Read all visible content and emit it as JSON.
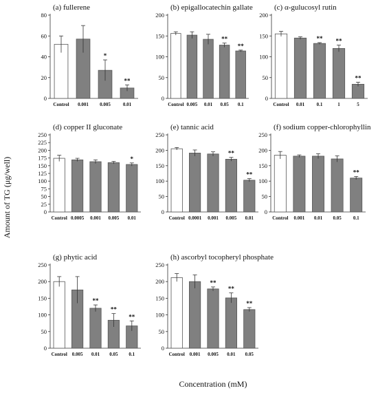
{
  "figure": {
    "ylabel": "Amount of TG (μg/well)",
    "xlabel": "Concentration (mM)"
  },
  "chart_data": [
    {
      "type": "bar",
      "title": "(a) fullerene",
      "categories": [
        "Control",
        "0.001",
        "0.005",
        "0.01"
      ],
      "values": [
        52,
        57,
        27,
        10
      ],
      "errors": [
        8,
        13,
        10,
        3
      ],
      "significance": [
        "",
        "",
        "*",
        "**"
      ],
      "ylim": [
        0,
        80
      ],
      "yticks": [
        0,
        20,
        40,
        60,
        80
      ]
    },
    {
      "type": "bar",
      "title": "(b) epigallocatechin gallate",
      "categories": [
        "Control",
        "0.005",
        "0.01",
        "0.05",
        "0.1"
      ],
      "values": [
        156,
        152,
        142,
        128,
        114
      ],
      "errors": [
        4,
        8,
        12,
        5,
        2
      ],
      "significance": [
        "",
        "",
        "",
        "**",
        "**"
      ],
      "ylim": [
        0,
        200
      ],
      "yticks": [
        0,
        50,
        100,
        150,
        200
      ]
    },
    {
      "type": "bar",
      "title": "(c) α-gulucosyl rutin",
      "categories": [
        "Control",
        "0.01",
        "0.1",
        "1",
        "5"
      ],
      "values": [
        155,
        145,
        132,
        120,
        34
      ],
      "errors": [
        6,
        3,
        2,
        8,
        5
      ],
      "significance": [
        "",
        "",
        "**",
        "**",
        "**"
      ],
      "ylim": [
        0,
        200
      ],
      "yticks": [
        0,
        50,
        100,
        150,
        200
      ]
    },
    {
      "type": "bar",
      "title": "(d) copper II gluconate",
      "categories": [
        "Control",
        "0.0005",
        "0.001",
        "0.005",
        "0.01"
      ],
      "values": [
        174,
        169,
        163,
        160,
        154
      ],
      "errors": [
        10,
        5,
        6,
        4,
        5
      ],
      "significance": [
        "",
        "",
        "",
        "",
        "*"
      ],
      "ylim": [
        0,
        250
      ],
      "yticks": [
        0,
        25,
        50,
        75,
        100,
        125,
        150,
        175,
        200,
        225,
        250
      ]
    },
    {
      "type": "bar",
      "title": "(e) tannic acid",
      "categories": [
        "Control",
        "0.0001",
        "0.001",
        "0.005",
        "0.01"
      ],
      "values": [
        205,
        191,
        188,
        171,
        103
      ],
      "errors": [
        4,
        10,
        7,
        6,
        5
      ],
      "significance": [
        "",
        "",
        "",
        "**",
        "**"
      ],
      "ylim": [
        0,
        250
      ],
      "yticks": [
        0,
        50,
        100,
        150,
        200,
        250
      ]
    },
    {
      "type": "bar",
      "title": "(f) sodium copper-chlorophyllin",
      "categories": [
        "Control",
        "0.001",
        "0.01",
        "0.05",
        "0.1"
      ],
      "values": [
        184,
        181,
        181,
        172,
        110
      ],
      "errors": [
        12,
        4,
        8,
        10,
        5
      ],
      "significance": [
        "",
        "",
        "",
        "",
        "**"
      ],
      "ylim": [
        0,
        250
      ],
      "yticks": [
        0,
        50,
        100,
        150,
        200,
        250
      ]
    },
    {
      "type": "bar",
      "title": "(g) phytic acid",
      "categories": [
        "Control",
        "0.005",
        "0.01",
        "0.05",
        "0.1"
      ],
      "values": [
        200,
        175,
        120,
        84,
        67
      ],
      "errors": [
        15,
        40,
        10,
        20,
        15
      ],
      "significance": [
        "",
        "",
        "**",
        "**",
        "**"
      ],
      "ylim": [
        0,
        250
      ],
      "yticks": [
        0,
        50,
        100,
        150,
        200,
        250
      ]
    },
    {
      "type": "bar",
      "title": "(h) ascorbyl tocopheryl phosphate",
      "categories": [
        "Control",
        "0.001",
        "0.005",
        "0.01",
        "0.05"
      ],
      "values": [
        212,
        200,
        178,
        151,
        116
      ],
      "errors": [
        12,
        20,
        6,
        15,
        6
      ],
      "significance": [
        "",
        "",
        "**",
        "**",
        "**"
      ],
      "ylim": [
        0,
        250
      ],
      "yticks": [
        0,
        50,
        100,
        150,
        200,
        250
      ]
    }
  ],
  "colors": {
    "control_fill": "#ffffff",
    "treatment_fill": "#808080",
    "bar_stroke": "#555555",
    "axis": "#333333",
    "error": "#333333"
  }
}
